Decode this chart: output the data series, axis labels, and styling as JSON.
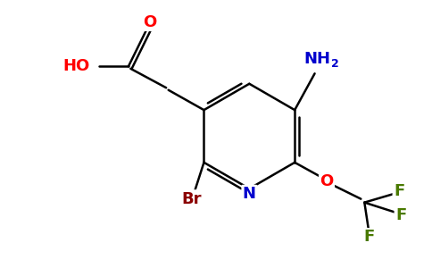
{
  "background_color": "#ffffff",
  "atom_colors": {
    "C": "#000000",
    "N": "#0000cd",
    "O": "#ff0000",
    "F": "#4a7a00",
    "Br": "#8b0000",
    "H": "#000000"
  },
  "bond_color": "#000000",
  "bond_width": 1.8,
  "figsize": [
    4.84,
    3.0
  ],
  "dpi": 100,
  "xlim": [
    0,
    9.5
  ],
  "ylim": [
    0,
    6.0
  ]
}
